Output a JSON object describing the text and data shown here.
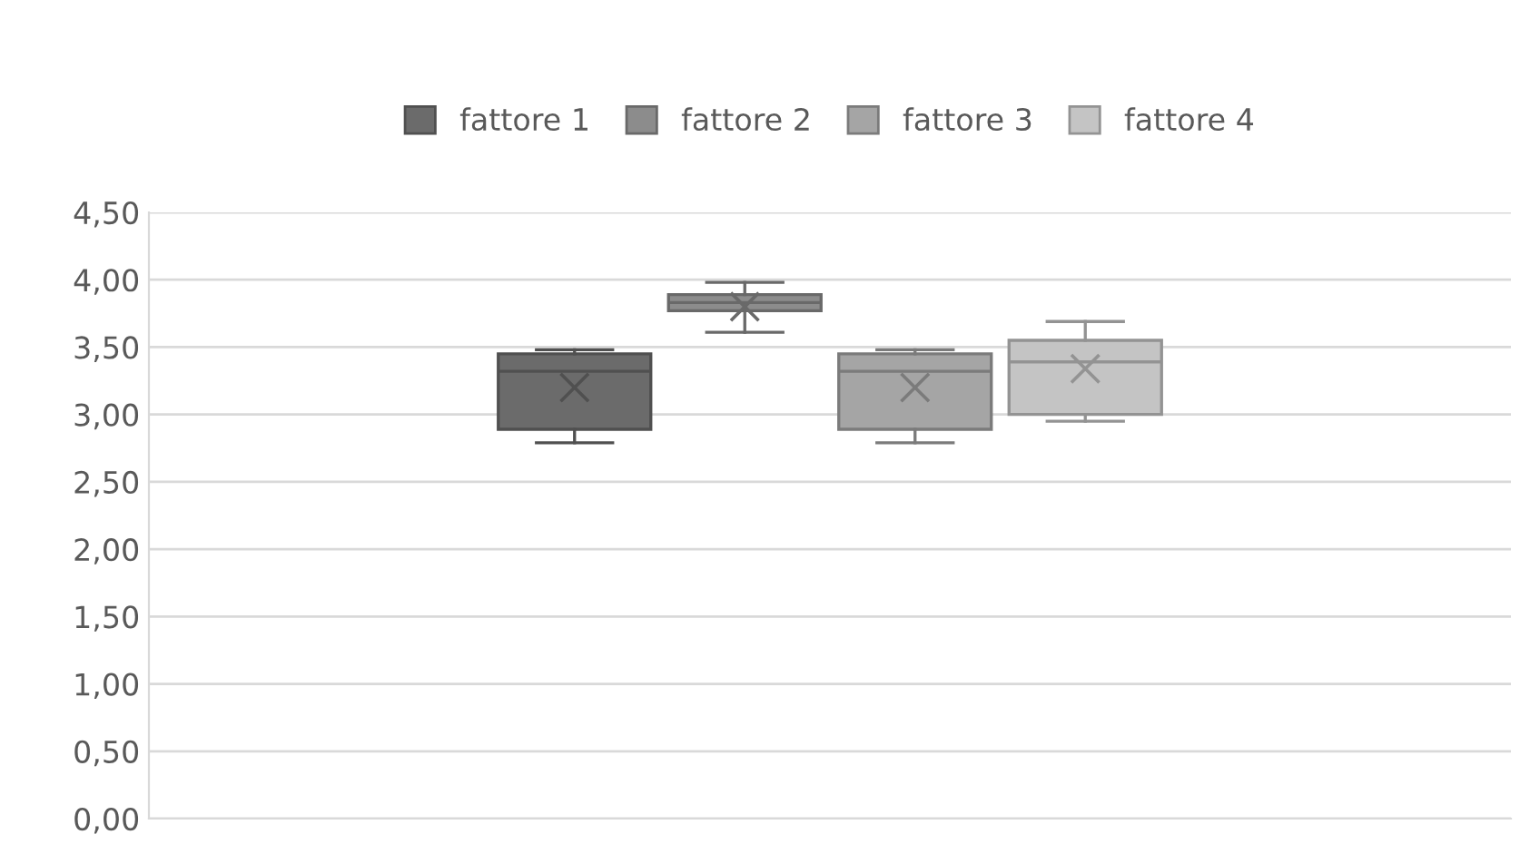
{
  "chart_data": {
    "type": "box",
    "categories": [
      null
    ],
    "series": [
      {
        "name": "fattore 1",
        "color": "#6b6b6b",
        "boxes": [
          {
            "low": 2.79,
            "q1": 2.89,
            "median": 3.32,
            "q3": 3.45,
            "high": 3.48,
            "mean": 3.2
          }
        ]
      },
      {
        "name": "fattore 2",
        "color": "#8c8c8c",
        "boxes": [
          {
            "low": 3.61,
            "q1": 3.77,
            "median": 3.83,
            "q3": 3.89,
            "high": 3.98,
            "mean": 3.8
          }
        ]
      },
      {
        "name": "fattore 3",
        "color": "#a5a5a5",
        "boxes": [
          {
            "low": 2.79,
            "q1": 2.89,
            "median": 3.32,
            "q3": 3.45,
            "high": 3.48,
            "mean": 3.2
          }
        ]
      },
      {
        "name": "fattore 4",
        "color": "#c4c4c4",
        "boxes": [
          {
            "low": 2.95,
            "q1": 3.0,
            "median": 3.39,
            "q3": 3.55,
            "high": 3.69,
            "mean": 3.34
          }
        ]
      }
    ],
    "ylim": [
      0,
      4.5
    ],
    "yticks": [
      {
        "value": 0,
        "label": "0,00"
      },
      {
        "value": 0.5,
        "label": "0,50"
      },
      {
        "value": 1,
        "label": "1,00"
      },
      {
        "value": 1.5,
        "label": "1,50"
      },
      {
        "value": 2,
        "label": "2,00"
      },
      {
        "value": 2.5,
        "label": "2,50"
      },
      {
        "value": 3,
        "label": "3,00"
      },
      {
        "value": 3.5,
        "label": "3,50"
      },
      {
        "value": 4,
        "label": "4,00"
      },
      {
        "value": 4.5,
        "label": "4,50"
      }
    ],
    "grid": "y",
    "legend": "top"
  }
}
